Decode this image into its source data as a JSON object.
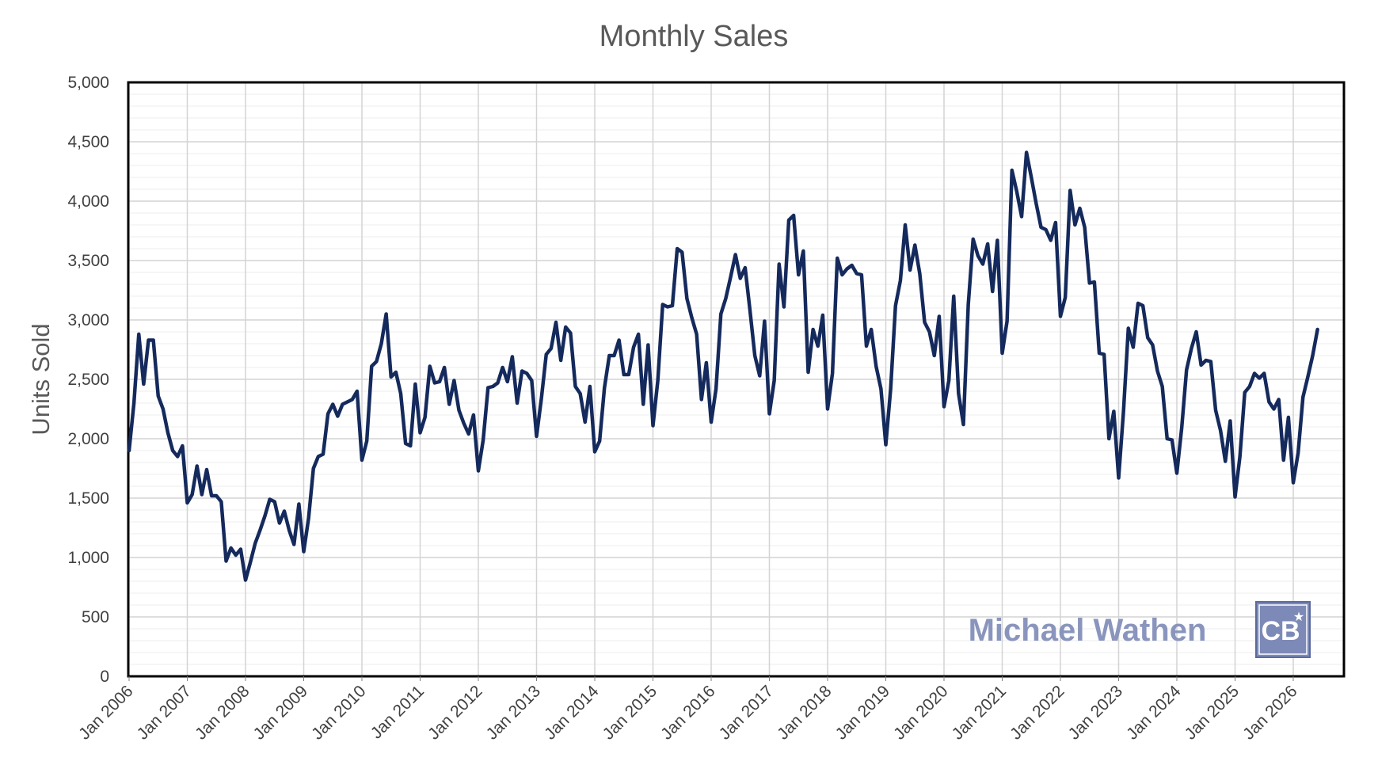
{
  "chart_data": {
    "type": "line",
    "title": "Monthly Sales",
    "xlabel": "",
    "ylabel": "Units Sold",
    "ylim": [
      0,
      5000
    ],
    "yticks": [
      0,
      500,
      1000,
      1500,
      2000,
      2500,
      3000,
      3500,
      4000,
      4500,
      5000
    ],
    "ytick_labels": [
      "0",
      "500",
      "1,000",
      "1,500",
      "2,000",
      "2,500",
      "3,000",
      "3,500",
      "4,000",
      "4,500",
      "5,000"
    ],
    "xlim": [
      "Jan 2006",
      "Apr 2027"
    ],
    "xtick_labels": [
      "Jan 2006",
      "Jan 2007",
      "Jan 2008",
      "Jan 2009",
      "Jan 2010",
      "Jan 2011",
      "Jan 2012",
      "Jan 2013",
      "Jan 2014",
      "Jan 2015",
      "Jan 2016",
      "Jan 2017",
      "Jan 2018",
      "Jan 2019",
      "Jan 2020",
      "Jan 2021",
      "Jan 2022",
      "Jan 2023",
      "Jan 2024",
      "Jan 2025",
      "Jan 2026"
    ],
    "grid": true,
    "line_color": "#152a5c",
    "start_month": "Jan 2006",
    "series": [
      {
        "values": [
          1900,
          2300,
          2880,
          2460,
          2830,
          2830,
          2360,
          2250,
          2050,
          1900,
          1850,
          1940,
          1460,
          1530,
          1770,
          1530,
          1740,
          1520,
          1520,
          1470,
          970,
          1080,
          1020,
          1070,
          810,
          960,
          1120,
          1230,
          1350,
          1490,
          1470,
          1290,
          1390,
          1230,
          1110,
          1450,
          1050,
          1330,
          1750,
          1850,
          1870,
          2210,
          2290,
          2190,
          2290,
          2310,
          2330,
          2400,
          1820,
          1980,
          2610,
          2650,
          2800,
          3050,
          2520,
          2560,
          2380,
          1960,
          1940,
          2460,
          2050,
          2180,
          2610,
          2470,
          2480,
          2600,
          2290,
          2490,
          2240,
          2130,
          2040,
          2200,
          1730,
          1990,
          2430,
          2440,
          2470,
          2600,
          2480,
          2690,
          2300,
          2570,
          2550,
          2490,
          2020,
          2340,
          2710,
          2760,
          2980,
          2660,
          2940,
          2890,
          2440,
          2380,
          2140,
          2440,
          1890,
          1980,
          2430,
          2700,
          2700,
          2830,
          2540,
          2540,
          2770,
          2880,
          2290,
          2790,
          2110,
          2490,
          3130,
          3110,
          3120,
          3600,
          3570,
          3180,
          3020,
          2880,
          2330,
          2640,
          2140,
          2420,
          3050,
          3180,
          3360,
          3550,
          3350,
          3440,
          3080,
          2700,
          2530,
          2990,
          2210,
          2490,
          3470,
          3110,
          3840,
          3880,
          3380,
          3580,
          2560,
          2920,
          2780,
          3040,
          2250,
          2550,
          3520,
          3380,
          3430,
          3460,
          3390,
          3380,
          2780,
          2920,
          2610,
          2420,
          1950,
          2420,
          3120,
          3330,
          3800,
          3420,
          3630,
          3390,
          2980,
          2900,
          2700,
          3030,
          2270,
          2490,
          3200,
          2380,
          2120,
          3130,
          3680,
          3540,
          3470,
          3640,
          3240,
          3670,
          2720,
          2990,
          4260,
          4080,
          3870,
          4410,
          4200,
          3980,
          3780,
          3760,
          3670,
          3820,
          3030,
          3190,
          4090,
          3800,
          3940,
          3780,
          3310,
          3320,
          2720,
          2710,
          2000,
          2230,
          1670,
          2230,
          2930,
          2770,
          3140,
          3120,
          2850,
          2790,
          2570,
          2440,
          2000,
          1990,
          1710,
          2090,
          2580,
          2760,
          2900,
          2620,
          2660,
          2650,
          2240,
          2070,
          1810,
          2150,
          1510,
          1850,
          2390,
          2440,
          2550,
          2510,
          2550,
          2310,
          2250,
          2330,
          1820,
          2180,
          1630,
          1880,
          2350,
          2520,
          2700,
          2920
        ]
      }
    ]
  },
  "watermark": {
    "text": "Michael Wathen",
    "color": "#8a95bd",
    "logo_text": "CB",
    "logo_color": "#7d8ab7"
  }
}
